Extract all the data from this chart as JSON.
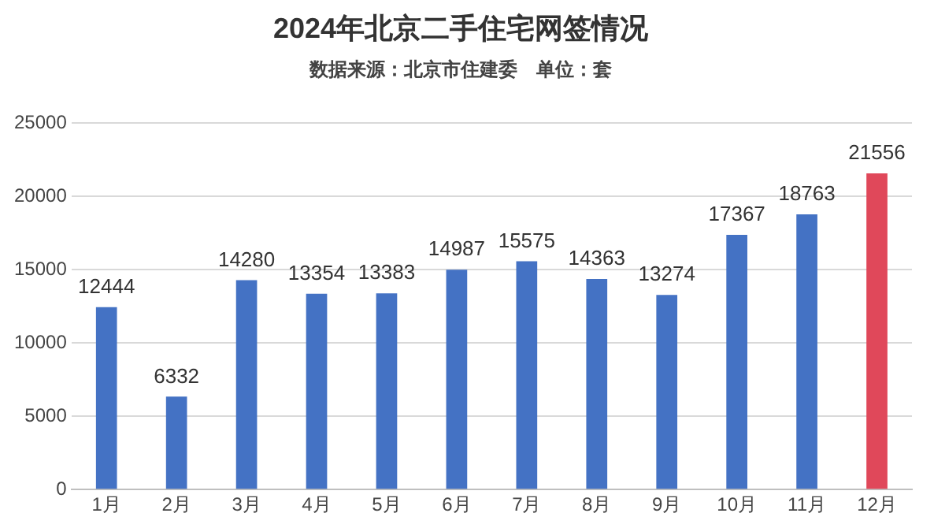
{
  "chart_data": {
    "type": "bar",
    "title": "2024年北京二手住宅网签情况",
    "subtitle": "数据来源：北京市住建委　单位：套",
    "categories": [
      "1月",
      "2月",
      "3月",
      "4月",
      "5月",
      "6月",
      "7月",
      "8月",
      "9月",
      "10月",
      "11月",
      "12月"
    ],
    "values": [
      12444,
      6332,
      14280,
      13354,
      13383,
      14987,
      15575,
      14363,
      13274,
      17367,
      18763,
      21556
    ],
    "colors": [
      "#4472c4",
      "#4472c4",
      "#4472c4",
      "#4472c4",
      "#4472c4",
      "#4472c4",
      "#4472c4",
      "#4472c4",
      "#4472c4",
      "#4472c4",
      "#4472c4",
      "#e0485a"
    ],
    "ylim": [
      0,
      25000
    ],
    "yticks": [
      0,
      5000,
      10000,
      15000,
      20000,
      25000
    ],
    "grid": "y",
    "data_labels": true,
    "legend": false
  }
}
